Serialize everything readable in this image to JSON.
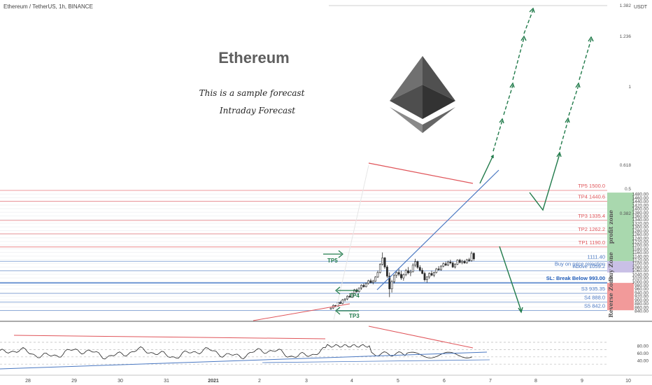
{
  "symbol_line": "Ethereum / TetherUS, 1h, BINANCE",
  "currency": "USDT",
  "title": "Ethereum",
  "subtitle1": "This is a sample forecast",
  "subtitle2": "Intraday Forecast",
  "chart_data": {
    "type": "candlestick",
    "y_range": [
      830,
      1500
    ],
    "y_ticks": [
      "1480.00",
      "1460.00",
      "1440.00",
      "1420.00",
      "1400.00",
      "1380.00",
      "1360.00",
      "1340.00",
      "1320.00",
      "1300.00",
      "1280.00",
      "1260.00",
      "1240.00",
      "1220.00",
      "1200.00",
      "1180.00",
      "1160.00",
      "1140.00",
      "1120.00",
      "1100.00",
      "1080.00",
      "1060.00",
      "1040.00",
      "1020.00",
      "1000.00",
      "980.00",
      "960.00",
      "940.00",
      "920.00",
      "900.00",
      "880.00",
      "860.00",
      "840.00"
    ],
    "x_labels": [
      "28",
      "29",
      "30",
      "31",
      "2021",
      "2",
      "3",
      "4",
      "5",
      "6",
      "7",
      "8",
      "9",
      "10"
    ],
    "levels": [
      {
        "label": "TP5 1500.0",
        "value": 1500.0,
        "color": "#e0555a"
      },
      {
        "label": "TP4 1440.6",
        "value": 1440.6,
        "color": "#e0555a"
      },
      {
        "label": "TP3 1335.4",
        "value": 1335.4,
        "color": "#e0555a"
      },
      {
        "label": "TP2 1262.2",
        "value": 1262.2,
        "color": "#e0555a"
      },
      {
        "label": "TP1 1190.0",
        "value": 1190.0,
        "color": "#e0555a"
      },
      {
        "label": "1111.40",
        "value": 1111.4,
        "color": "#4a78c2"
      },
      {
        "label": "Buy on price rejection",
        "value": 1073.0,
        "color": "#4a78c2"
      },
      {
        "label": "Above 1059.2",
        "value": 1059.2,
        "color": "#4a78c2"
      },
      {
        "label": "SL: Break Below 993.00",
        "value": 993.0,
        "color": "#1e5bb8"
      },
      {
        "label": "S3 935.35",
        "value": 935.35,
        "color": "#4a78c2"
      },
      {
        "label": "S4 888.0",
        "value": 888.0,
        "color": "#4a78c2"
      },
      {
        "label": "S5 842.0",
        "value": 842.0,
        "color": "#4a78c2"
      }
    ],
    "fib_labels": [
      "1.382",
      "1.236",
      "1",
      "0.618",
      "0.5",
      "0.382"
    ],
    "zones": [
      {
        "label": "profit zone",
        "from": 1112,
        "to": 1488,
        "color": "#a9d8ae"
      },
      {
        "label": "Buy Zone",
        "from": 1050,
        "to": 1112,
        "color": "#c9c0e6"
      },
      {
        "label": "Reverse Zone",
        "from": 843,
        "to": 993,
        "color": "#f29a9a"
      }
    ],
    "target_markers": [
      "TP5",
      "TP4",
      "TP3"
    ],
    "candles_ohlc": [
      [
        850,
        858,
        846,
        855
      ],
      [
        855,
        875,
        850,
        870
      ],
      [
        870,
        872,
        860,
        865
      ],
      [
        865,
        890,
        862,
        885
      ],
      [
        885,
        895,
        878,
        880
      ],
      [
        880,
        905,
        876,
        900
      ],
      [
        900,
        910,
        892,
        905
      ],
      [
        905,
        925,
        898,
        920
      ],
      [
        920,
        930,
        912,
        915
      ],
      [
        915,
        940,
        910,
        935
      ],
      [
        935,
        960,
        930,
        955
      ],
      [
        955,
        962,
        938,
        945
      ],
      [
        945,
        968,
        940,
        965
      ],
      [
        965,
        985,
        955,
        980
      ],
      [
        980,
        990,
        966,
        972
      ],
      [
        972,
        995,
        968,
        990
      ],
      [
        990,
        1010,
        984,
        1005
      ],
      [
        1005,
        1015,
        990,
        995
      ],
      [
        995,
        1010,
        985,
        1002
      ],
      [
        1002,
        1030,
        998,
        1025
      ],
      [
        1025,
        1060,
        1020,
        1050
      ],
      [
        1050,
        1100,
        1045,
        1095
      ],
      [
        1095,
        1160,
        1088,
        1130
      ],
      [
        1130,
        1135,
        1070,
        1080
      ],
      [
        1080,
        1090,
        1020,
        1030
      ],
      [
        1030,
        1050,
        915,
        960
      ],
      [
        960,
        1010,
        940,
        1000
      ],
      [
        1000,
        1040,
        990,
        1035
      ],
      [
        1035,
        1060,
        1020,
        1050
      ],
      [
        1050,
        1070,
        1030,
        1040
      ],
      [
        1040,
        1060,
        1010,
        1020
      ],
      [
        1020,
        1045,
        1005,
        1038
      ],
      [
        1038,
        1070,
        1030,
        1060
      ],
      [
        1060,
        1080,
        1040,
        1048
      ],
      [
        1048,
        1065,
        1030,
        1055
      ],
      [
        1055,
        1100,
        1050,
        1090
      ],
      [
        1090,
        1125,
        1080,
        1110
      ],
      [
        1110,
        1115,
        1070,
        1078
      ],
      [
        1078,
        1090,
        1055,
        1062
      ],
      [
        1062,
        1075,
        1040,
        1045
      ],
      [
        1045,
        1055,
        1000,
        1010
      ],
      [
        1010,
        1030,
        995,
        1025
      ],
      [
        1025,
        1050,
        1015,
        1045
      ],
      [
        1045,
        1060,
        1030,
        1035
      ],
      [
        1035,
        1055,
        1025,
        1050
      ],
      [
        1050,
        1075,
        1045,
        1070
      ],
      [
        1070,
        1085,
        1060,
        1065
      ],
      [
        1065,
        1090,
        1060,
        1085
      ],
      [
        1085,
        1105,
        1078,
        1098
      ],
      [
        1098,
        1110,
        1085,
        1090
      ],
      [
        1090,
        1115,
        1085,
        1108
      ],
      [
        1108,
        1120,
        1095,
        1102
      ],
      [
        1102,
        1110,
        1075,
        1080
      ],
      [
        1080,
        1100,
        1072,
        1095
      ],
      [
        1095,
        1122,
        1090,
        1118
      ],
      [
        1118,
        1125,
        1100,
        1105
      ],
      [
        1105,
        1120,
        1095,
        1112
      ],
      [
        1112,
        1118,
        1098,
        1102
      ],
      [
        1102,
        1125,
        1098,
        1120
      ],
      [
        1120,
        1130,
        1108,
        1115
      ],
      [
        1115,
        1165,
        1110,
        1155
      ],
      [
        1155,
        1160,
        1115,
        1125
      ]
    ],
    "oscillator": {
      "y_ticks": [
        "80.00",
        "60.00",
        "40.00"
      ],
      "range": [
        30,
        90
      ]
    }
  }
}
